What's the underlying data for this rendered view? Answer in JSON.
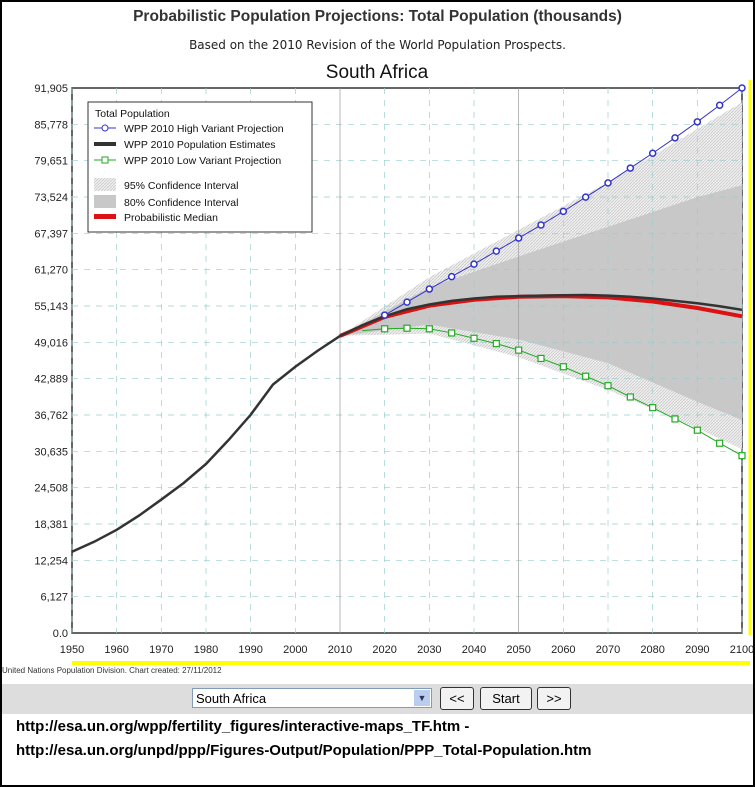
{
  "header": {
    "title": "Probabilistic Population Projections: Total Population (thousands)",
    "subtitle": "Based on the 2010 Revision of the World Population Prospects."
  },
  "footer": {
    "credit": "United Nations Population Division. Chart created: 27/11/2012",
    "urls": [
      "http://esa.un.org/wpp/fertility_figures/interactive-maps_TF.htm -",
      "http://esa.un.org/unpd/ppp/Figures-Output/Population/PPP_Total-Population.htm"
    ]
  },
  "controls": {
    "country": "South Africa",
    "prev": "<<",
    "start": "Start",
    "next": ">>"
  },
  "colors": {
    "high": "#3333cc",
    "low": "#22aa22",
    "estimates": "#333333",
    "median": "#dd1111",
    "ci95": "#e2e2e2",
    "ci80": "#c8c8c8",
    "highlight": "#ffff00"
  },
  "chart_data": {
    "type": "line",
    "title": "South Africa",
    "legend_title": "Total Population",
    "legend_placement": "top-left",
    "legend": [
      "WPP 2010 High Variant Projection",
      "WPP 2010 Population Estimates",
      "WPP 2010 Low Variant Projection",
      "95% Confidence Interval",
      "80% Confidence Interval",
      "Probabilistic Median"
    ],
    "xlim": [
      1950,
      2100
    ],
    "ylim": [
      0,
      91905
    ],
    "xticks": [
      "1950",
      "1960",
      "1970",
      "1980",
      "1990",
      "2000",
      "2010",
      "2020",
      "2030",
      "2040",
      "2050",
      "2060",
      "2070",
      "2080",
      "2090",
      "2100"
    ],
    "yticks": [
      "0.0",
      "6,127",
      "12,254",
      "18,381",
      "24,508",
      "30,635",
      "36,762",
      "42,889",
      "49,016",
      "55,143",
      "61,270",
      "67,397",
      "73,524",
      "79,651",
      "85,778",
      "91,905"
    ],
    "estimates": {
      "x": [
        1950,
        1955,
        1960,
        1965,
        1970,
        1975,
        1980,
        1985,
        1990,
        1995,
        2000,
        2005,
        2010,
        2015,
        2020,
        2025,
        2030,
        2035,
        2040,
        2045,
        2050,
        2055,
        2060,
        2065,
        2070,
        2075,
        2080,
        2085,
        2090,
        2095,
        2100
      ],
      "y": [
        13700,
        15400,
        17400,
        19800,
        22500,
        25300,
        28500,
        32500,
        36800,
        41900,
        44900,
        47600,
        50100,
        51900,
        53400,
        54600,
        55400,
        56000,
        56400,
        56700,
        56800,
        56900,
        56950,
        57000,
        56900,
        56700,
        56400,
        56000,
        55600,
        55100,
        54500
      ]
    },
    "median": {
      "x": [
        2010,
        2020,
        2030,
        2040,
        2050,
        2060,
        2070,
        2080,
        2090,
        2100
      ],
      "y": [
        50100,
        53300,
        55200,
        56200,
        56700,
        56800,
        56600,
        55900,
        54800,
        53400
      ]
    },
    "high": {
      "x": [
        2015,
        2020,
        2025,
        2030,
        2035,
        2040,
        2045,
        2050,
        2055,
        2060,
        2065,
        2070,
        2075,
        2080,
        2085,
        2090,
        2095,
        2100
      ],
      "y": [
        52000,
        53600,
        55800,
        58000,
        60100,
        62200,
        64400,
        66600,
        68800,
        71100,
        73500,
        75900,
        78400,
        80900,
        83500,
        86200,
        89000,
        91905
      ]
    },
    "low": {
      "x": [
        2015,
        2020,
        2025,
        2030,
        2035,
        2040,
        2045,
        2050,
        2055,
        2060,
        2065,
        2070,
        2075,
        2080,
        2085,
        2090,
        2095,
        2100
      ],
      "y": [
        51000,
        51300,
        51400,
        51300,
        50600,
        49700,
        48800,
        47700,
        46300,
        44900,
        43300,
        41700,
        39800,
        38000,
        36100,
        34200,
        32000,
        29900
      ]
    },
    "ci95": {
      "x": [
        2010,
        2030,
        2050,
        2070,
        2090,
        2100
      ],
      "upper": [
        50100,
        60000,
        68000,
        76000,
        85000,
        89500
      ],
      "lower": [
        50100,
        50500,
        46500,
        41000,
        34500,
        31000
      ]
    },
    "ci80": {
      "x": [
        2010,
        2030,
        2050,
        2070,
        2090,
        2100
      ],
      "upper": [
        50100,
        58300,
        63500,
        68500,
        73500,
        75500
      ],
      "lower": [
        50100,
        52000,
        49500,
        45500,
        39000,
        35900
      ]
    }
  }
}
